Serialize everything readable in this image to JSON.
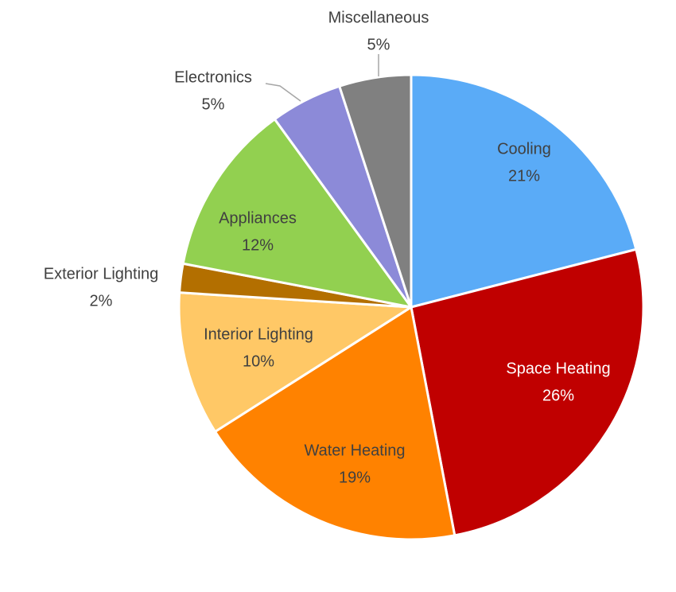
{
  "chart_data": {
    "type": "pie",
    "title": "",
    "start_angle_deg": 0,
    "direction": "clockwise",
    "slices": [
      {
        "label": "Cooling",
        "value_label": "21%",
        "value": 21,
        "color": "#5aabf7",
        "text_color": "#404040",
        "leader": false
      },
      {
        "label": "Space Heating",
        "value_label": "26%",
        "value": 26,
        "color": "#c00000",
        "text_color": "#ffffff",
        "leader": false
      },
      {
        "label": "Water Heating",
        "value_label": "19%",
        "value": 19,
        "color": "#ff8200",
        "text_color": "#404040",
        "leader": false
      },
      {
        "label": "Interior Lighting",
        "value_label": "10%",
        "value": 10,
        "color": "#ffc866",
        "text_color": "#404040",
        "leader": false
      },
      {
        "label": "Exterior Lighting",
        "value_label": "2%",
        "value": 2,
        "color": "#b36f00",
        "text_color": "#404040",
        "leader": false
      },
      {
        "label": "Appliances",
        "value_label": "12%",
        "value": 12,
        "color": "#92d050",
        "text_color": "#404040",
        "leader": false
      },
      {
        "label": "Electronics",
        "value_label": "5%",
        "value": 5,
        "color": "#8c8ad8",
        "text_color": "#404040",
        "leader": true
      },
      {
        "label": "Miscellaneous",
        "value_label": "5%",
        "value": 5,
        "color": "#808080",
        "text_color": "#404040",
        "leader": true
      }
    ]
  }
}
